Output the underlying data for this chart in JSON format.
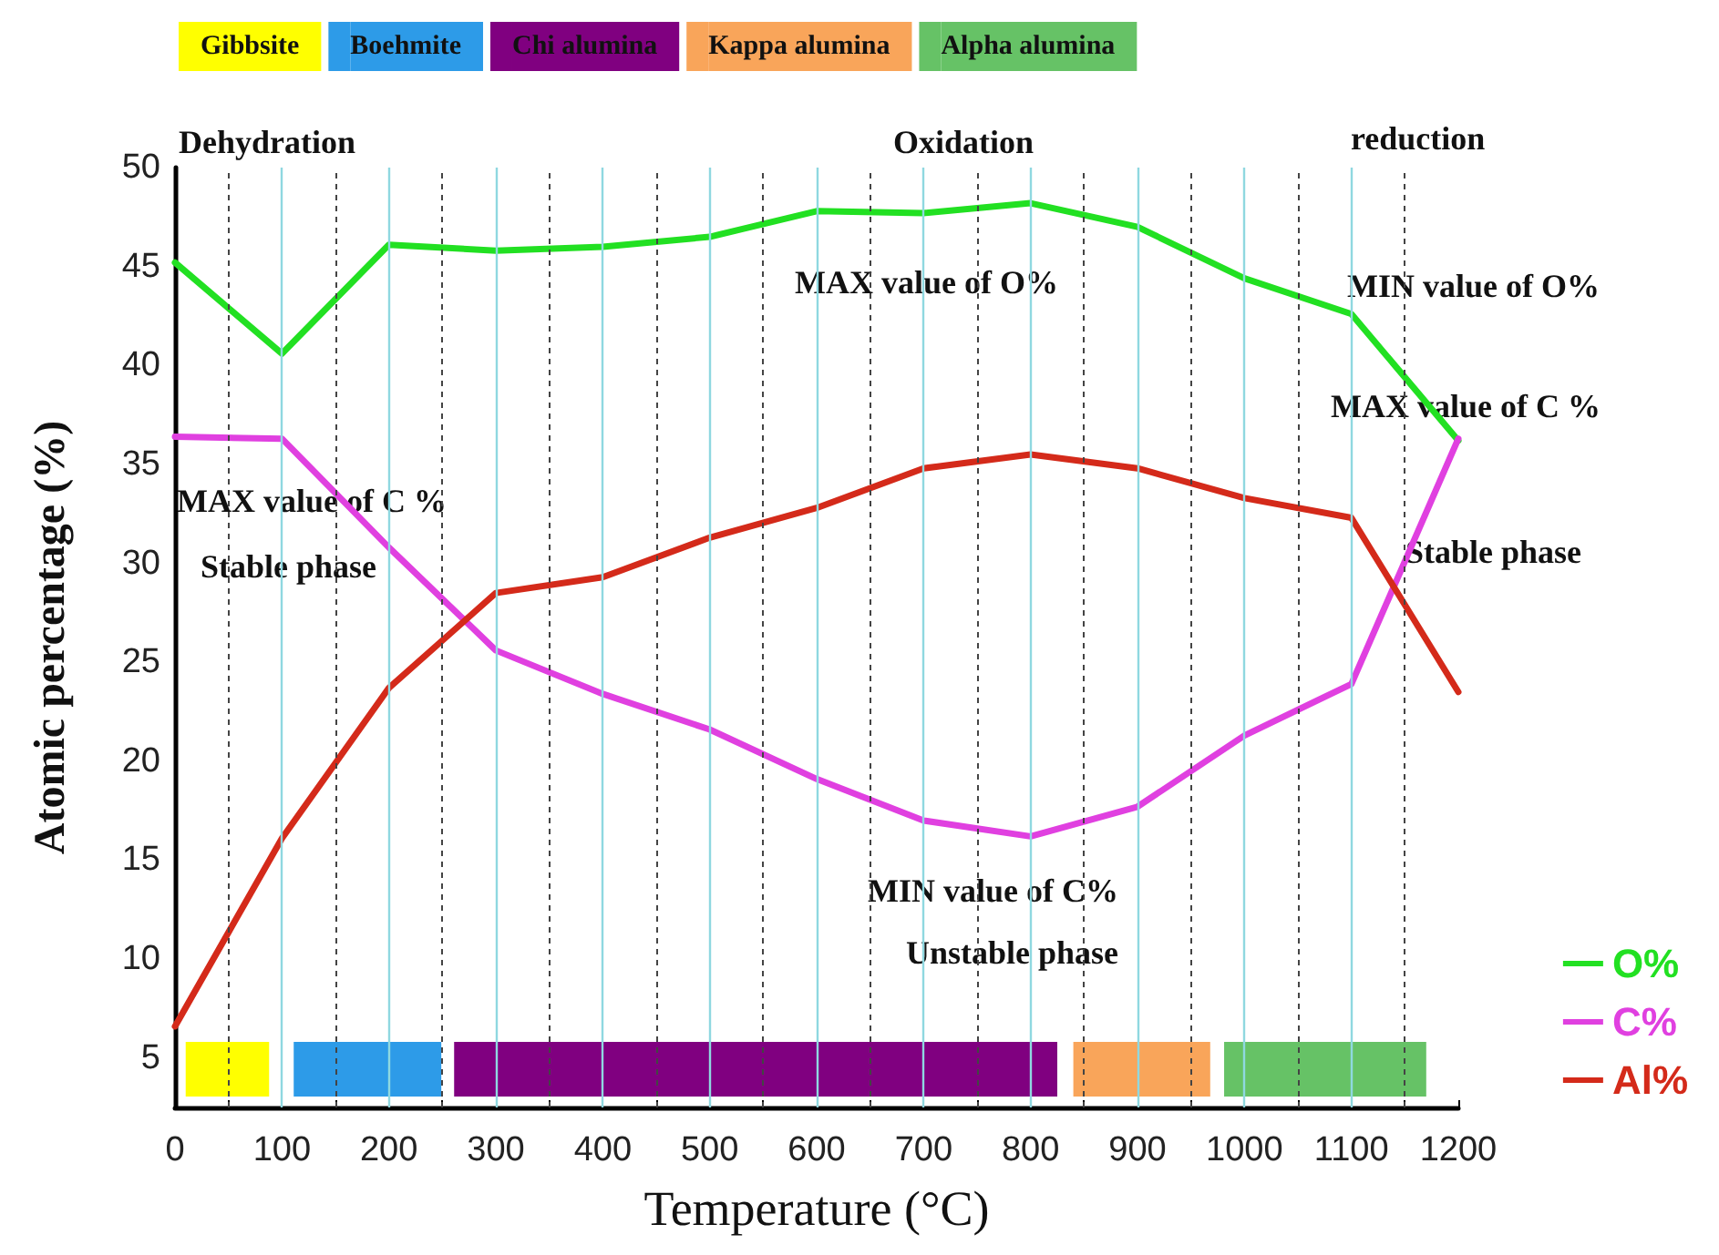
{
  "chart_data": {
    "type": "line",
    "xlabel": "Temperature (°C)",
    "ylabel": "Atomic percentage (%)",
    "x": [
      0,
      100,
      200,
      300,
      400,
      500,
      600,
      700,
      800,
      900,
      1000,
      1100,
      1200
    ],
    "series": [
      {
        "name": "O%",
        "color": "#22e022",
        "values": [
          45.2,
          40.6,
          46.1,
          45.8,
          46,
          46.5,
          47.8,
          47.7,
          48.2,
          47,
          44.4,
          42.6,
          36.2
        ]
      },
      {
        "name": "C%",
        "color": "#e040e0",
        "values": [
          36.4,
          36.3,
          30.8,
          25.6,
          23.4,
          21.6,
          19.1,
          17,
          16.2,
          17.7,
          21.3,
          23.9,
          36.3
        ]
      },
      {
        "name": "Al%",
        "color": "#d42a1a",
        "values": [
          6.6,
          16.1,
          23.7,
          28.5,
          29.3,
          31.3,
          32.8,
          34.8,
          35.5,
          34.8,
          33.3,
          32.3,
          23.5
        ]
      }
    ],
    "xlim": [
      0,
      1200
    ],
    "ylim": [
      2.5,
      50
    ],
    "xticks": [
      0,
      {
        "value": 50,
        "label": null
      },
      100,
      {
        "value": 150,
        "label": null
      },
      200,
      {
        "value": 250,
        "label": null
      },
      300,
      {
        "value": 350,
        "label": null
      },
      400,
      {
        "value": 450,
        "label": null
      },
      500,
      {
        "value": 550,
        "label": null
      },
      600,
      {
        "value": 650,
        "label": null
      },
      700,
      {
        "value": 750,
        "label": null
      },
      800,
      {
        "value": 850,
        "label": null
      },
      900,
      {
        "value": 950,
        "label": null
      },
      1000,
      {
        "value": 1050,
        "label": null
      },
      1100,
      {
        "value": 1150,
        "label": null
      },
      1200
    ],
    "yticks": [
      5,
      10,
      15,
      20,
      25,
      30,
      35,
      40,
      45,
      50
    ],
    "grid": "x",
    "legend": "right",
    "marker": "none",
    "line_style": "solid",
    "bands": [
      {
        "axis": "x",
        "from": 10,
        "to": 88,
        "label": "Gibbsite",
        "color": "#ffff00"
      },
      {
        "axis": "x",
        "from": 111,
        "to": 249,
        "label": "Boehmite",
        "color": "#2d9be8"
      },
      {
        "axis": "x",
        "from": 261,
        "to": 825,
        "label": "Chi alumina",
        "color": "#800080"
      },
      {
        "axis": "x",
        "from": 840,
        "to": 968,
        "label": "Kappa alumina",
        "color": "#f9a55a"
      },
      {
        "axis": "x",
        "from": 981,
        "to": 1170,
        "label": "Alpha alumina",
        "color": "#66c266"
      }
    ],
    "annotations": [
      "Dehydration",
      "Oxidation",
      "reduction",
      "MAX value of O%",
      "MIN value of O%",
      "MAX value of C %",
      "MAX value of C %",
      "Stable phase",
      "Stable phase",
      "MIN value of C%",
      "Unstable phase"
    ]
  }
}
